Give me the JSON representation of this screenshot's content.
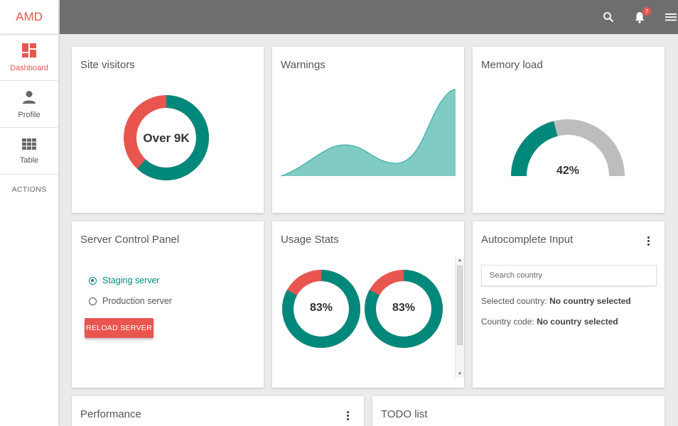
{
  "app": {
    "brand": "AMD"
  },
  "sidebar": {
    "items": [
      {
        "label": "Dashboard",
        "icon": "dashboard-icon",
        "active": true
      },
      {
        "label": "Profile",
        "icon": "person-icon",
        "active": false
      },
      {
        "label": "Table",
        "icon": "grid-icon",
        "active": false
      }
    ],
    "actions_label": "ACTIONS"
  },
  "topbar": {
    "notifications_count": "7",
    "icons": [
      "search-icon",
      "bell-icon",
      "menu-icon"
    ]
  },
  "colors": {
    "accent": "#e8564f",
    "teal": "#00897b",
    "teal_light": "#80cbc4",
    "gray": "#bdbdbd",
    "topbar": "#6e6e6e"
  },
  "cards": {
    "site_visitors": {
      "title": "Site visitors",
      "center_label": "Over 9K",
      "teal_fraction": 0.62,
      "red_fraction": 0.38
    },
    "warnings": {
      "title": "Warnings"
    },
    "memory_load": {
      "title": "Memory load",
      "value_label": "42%",
      "value": 0.42
    },
    "server_control": {
      "title": "Server Control Panel",
      "options": [
        {
          "label": "Staging server",
          "checked": true
        },
        {
          "label": "Production server",
          "checked": false
        }
      ],
      "button_label": "RELOAD SERVER"
    },
    "usage_stats": {
      "title": "Usage Stats",
      "charts": [
        {
          "label": "83%",
          "value": 0.83
        },
        {
          "label": "83%",
          "value": 0.83
        }
      ]
    },
    "autocomplete": {
      "title": "Autocomplete Input",
      "placeholder": "Search country",
      "selected_country_label": "Selected country:",
      "selected_country_value": "No country selected",
      "country_code_label": "Country code:",
      "country_code_value": "No country selected"
    },
    "performance": {
      "title": "Performance"
    },
    "todo": {
      "title": "TODO list"
    }
  }
}
